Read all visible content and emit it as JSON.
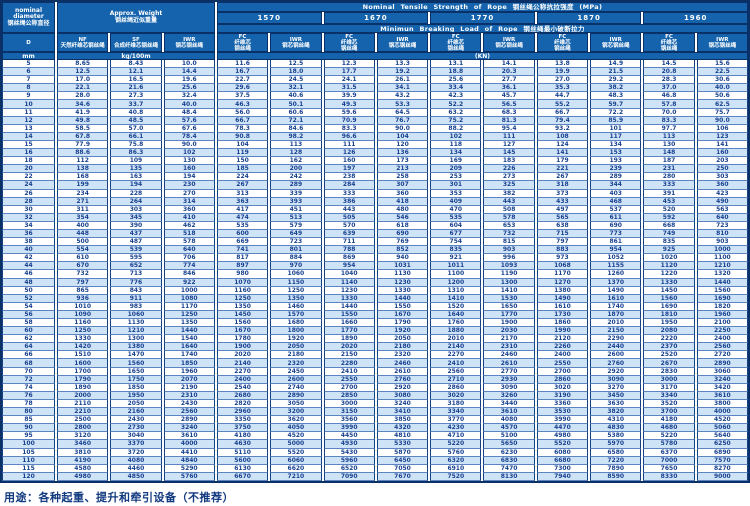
{
  "header": {
    "diameter_en1": "nominal",
    "diameter_en2": "diameter",
    "diameter_zh": "钢丝绳公称直径",
    "weight_en": "Approx. Weight",
    "weight_zh": "钢丝绳近似重量",
    "tensile_title": "Nominal Tensile Strength of Rope 钢丝绳公称抗拉强度 (MPa)",
    "breaking_title": "Minimun Breaking Load of Rope 钢丝绳最小破断拉力",
    "strengths": [
      "1570",
      "1670",
      "1770",
      "1870",
      "1960"
    ],
    "d_label": "D",
    "nf_en": "NF",
    "nf_zh": "天然纤维芯钢丝绳",
    "sf_en": "SF",
    "sf_zh": "合成纤维芯钢丝绳",
    "iwr_en": "IWR",
    "iwr_zh": "钢芯钢丝绳",
    "fc_en": "FC",
    "fc_zh1": "纤维芯",
    "fc_zh2": "钢丝绳",
    "unit_mm": "mm",
    "unit_kg": "kg/100m",
    "unit_kn": "(KN)"
  },
  "rows": [
    [
      "5",
      "8.65",
      "8.43",
      "10.0",
      "11.6",
      "12.5",
      "12.3",
      "13.3",
      "13.1",
      "14.1",
      "13.8",
      "14.9",
      "14.5",
      "15.6"
    ],
    [
      "6",
      "12.5",
      "12.1",
      "14.4",
      "16.7",
      "18.0",
      "17.7",
      "19.2",
      "18.8",
      "20.3",
      "19.9",
      "21.5",
      "20.8",
      "22.5"
    ],
    [
      "7",
      "17.0",
      "16.5",
      "19.6",
      "22.7",
      "24.5",
      "24.1",
      "26.1",
      "25.6",
      "27.7",
      "27.0",
      "29.2",
      "28.3",
      "30.6"
    ],
    [
      "8",
      "22.1",
      "21.6",
      "25.6",
      "29.6",
      "32.1",
      "31.5",
      "34.1",
      "33.4",
      "36.1",
      "35.3",
      "38.2",
      "37.0",
      "40.0"
    ],
    [
      "9",
      "28.0",
      "27.3",
      "32.4",
      "37.5",
      "40.6",
      "39.9",
      "43.2",
      "42.3",
      "45.7",
      "44.7",
      "48.3",
      "46.8",
      "50.6"
    ],
    [
      "10",
      "34.6",
      "33.7",
      "40.0",
      "46.3",
      "50.1",
      "49.3",
      "53.3",
      "52.2",
      "56.5",
      "55.2",
      "59.7",
      "57.8",
      "62.5"
    ],
    [
      "11",
      "41.9",
      "40.8",
      "48.4",
      "56.0",
      "60.6",
      "59.6",
      "64.5",
      "63.2",
      "68.3",
      "66.7",
      "72.2",
      "70.0",
      "75.7"
    ],
    [
      "12",
      "49.8",
      "48.5",
      "57.6",
      "66.7",
      "72.1",
      "70.9",
      "76.7",
      "75.2",
      "81.3",
      "79.4",
      "85.9",
      "83.3",
      "90.0"
    ],
    [
      "13",
      "58.5",
      "57.0",
      "67.6",
      "78.3",
      "84.6",
      "83.3",
      "90.0",
      "88.2",
      "95.4",
      "93.2",
      "101",
      "97.7",
      "106"
    ],
    [
      "14",
      "67.8",
      "66.1",
      "78.4",
      "90.8",
      "98.2",
      "96.6",
      "104",
      "102",
      "111",
      "108",
      "117",
      "113",
      "123"
    ],
    [
      "15",
      "77.9",
      "75.8",
      "90.0",
      "104",
      "113",
      "111",
      "120",
      "118",
      "127",
      "124",
      "134",
      "130",
      "141"
    ],
    [
      "16",
      "88.6",
      "86.3",
      "102",
      "119",
      "128",
      "126",
      "136",
      "134",
      "145",
      "141",
      "153",
      "148",
      "160"
    ],
    [
      "18",
      "112",
      "109",
      "130",
      "150",
      "162",
      "160",
      "173",
      "169",
      "183",
      "179",
      "193",
      "187",
      "203"
    ],
    [
      "20",
      "138",
      "135",
      "160",
      "185",
      "200",
      "197",
      "213",
      "209",
      "226",
      "221",
      "239",
      "231",
      "250"
    ],
    [
      "22",
      "168",
      "163",
      "194",
      "224",
      "242",
      "238",
      "258",
      "253",
      "273",
      "267",
      "289",
      "280",
      "303"
    ],
    [
      "24",
      "199",
      "194",
      "230",
      "267",
      "289",
      "284",
      "307",
      "301",
      "325",
      "318",
      "344",
      "333",
      "360"
    ],
    [
      "26",
      "234",
      "228",
      "270",
      "313",
      "339",
      "333",
      "360",
      "353",
      "382",
      "373",
      "403",
      "391",
      "423"
    ],
    [
      "28",
      "271",
      "264",
      "314",
      "363",
      "393",
      "386",
      "418",
      "409",
      "443",
      "433",
      "468",
      "453",
      "490"
    ],
    [
      "30",
      "311",
      "303",
      "360",
      "417",
      "451",
      "443",
      "480",
      "470",
      "508",
      "497",
      "537",
      "520",
      "563"
    ],
    [
      "32",
      "354",
      "345",
      "410",
      "474",
      "513",
      "505",
      "546",
      "535",
      "578",
      "565",
      "611",
      "592",
      "640"
    ],
    [
      "34",
      "400",
      "390",
      "462",
      "535",
      "579",
      "570",
      "618",
      "604",
      "653",
      "638",
      "690",
      "668",
      "723"
    ],
    [
      "36",
      "448",
      "437",
      "518",
      "600",
      "649",
      "639",
      "690",
      "677",
      "732",
      "715",
      "773",
      "749",
      "810"
    ],
    [
      "38",
      "500",
      "487",
      "578",
      "669",
      "723",
      "711",
      "769",
      "754",
      "815",
      "797",
      "861",
      "835",
      "903"
    ],
    [
      "40",
      "554",
      "539",
      "640",
      "741",
      "801",
      "788",
      "852",
      "835",
      "903",
      "883",
      "954",
      "925",
      "1000"
    ],
    [
      "42",
      "610",
      "595",
      "706",
      "817",
      "884",
      "869",
      "940",
      "921",
      "996",
      "973",
      "1052",
      "1020",
      "1100"
    ],
    [
      "44",
      "670",
      "652",
      "774",
      "897",
      "970",
      "954",
      "1031",
      "1011",
      "1093",
      "1068",
      "1155",
      "1120",
      "1210"
    ],
    [
      "46",
      "732",
      "713",
      "846",
      "980",
      "1060",
      "1040",
      "1130",
      "1100",
      "1190",
      "1170",
      "1260",
      "1220",
      "1320"
    ],
    [
      "48",
      "797",
      "776",
      "922",
      "1070",
      "1150",
      "1140",
      "1230",
      "1200",
      "1300",
      "1270",
      "1370",
      "1330",
      "1440"
    ],
    [
      "50",
      "865",
      "843",
      "1000",
      "1160",
      "1250",
      "1230",
      "1330",
      "1310",
      "1410",
      "1380",
      "1490",
      "1450",
      "1560"
    ],
    [
      "52",
      "936",
      "911",
      "1080",
      "1250",
      "1350",
      "1330",
      "1440",
      "1410",
      "1530",
      "1490",
      "1610",
      "1560",
      "1690"
    ],
    [
      "54",
      "1010",
      "983",
      "1170",
      "1350",
      "1460",
      "1440",
      "1550",
      "1520",
      "1650",
      "1610",
      "1740",
      "1690",
      "1820"
    ],
    [
      "56",
      "1090",
      "1060",
      "1250",
      "1450",
      "1570",
      "1550",
      "1670",
      "1640",
      "1770",
      "1730",
      "1870",
      "1810",
      "1960"
    ],
    [
      "58",
      "1160",
      "1130",
      "1350",
      "1560",
      "1680",
      "1660",
      "1790",
      "1760",
      "1900",
      "1860",
      "2010",
      "1950",
      "2100"
    ],
    [
      "60",
      "1250",
      "1210",
      "1440",
      "1670",
      "1800",
      "1770",
      "1920",
      "1880",
      "2030",
      "1990",
      "2150",
      "2080",
      "2250"
    ],
    [
      "62",
      "1330",
      "1300",
      "1540",
      "1780",
      "1920",
      "1890",
      "2050",
      "2010",
      "2170",
      "2120",
      "2290",
      "2220",
      "2400"
    ],
    [
      "64",
      "1420",
      "1380",
      "1640",
      "1900",
      "2050",
      "2020",
      "2180",
      "2140",
      "2310",
      "2260",
      "2440",
      "2370",
      "2560"
    ],
    [
      "66",
      "1510",
      "1470",
      "1740",
      "2020",
      "2180",
      "2150",
      "2320",
      "2270",
      "2460",
      "2400",
      "2600",
      "2520",
      "2720"
    ],
    [
      "68",
      "1600",
      "1560",
      "1850",
      "2140",
      "2320",
      "2280",
      "2460",
      "2410",
      "2610",
      "2550",
      "2760",
      "2670",
      "2890"
    ],
    [
      "70",
      "1700",
      "1650",
      "1960",
      "2270",
      "2450",
      "2410",
      "2610",
      "2560",
      "2770",
      "2700",
      "2920",
      "2830",
      "3060"
    ],
    [
      "72",
      "1790",
      "1750",
      "2070",
      "2400",
      "2600",
      "2550",
      "2760",
      "2710",
      "2930",
      "2860",
      "3090",
      "3000",
      "3240"
    ],
    [
      "74",
      "1890",
      "1850",
      "2190",
      "2540",
      "2740",
      "2700",
      "2920",
      "2860",
      "3090",
      "3020",
      "3270",
      "3170",
      "3420"
    ],
    [
      "76",
      "2000",
      "1950",
      "2310",
      "2680",
      "2890",
      "2850",
      "3080",
      "3020",
      "3260",
      "3190",
      "3450",
      "3340",
      "3610"
    ],
    [
      "78",
      "2110",
      "2050",
      "2430",
      "2820",
      "3050",
      "3000",
      "3240",
      "3180",
      "3440",
      "3360",
      "3630",
      "3520",
      "3800"
    ],
    [
      "80",
      "2210",
      "2160",
      "2560",
      "2960",
      "3200",
      "3150",
      "3410",
      "3340",
      "3610",
      "3530",
      "3820",
      "3700",
      "4000"
    ],
    [
      "85",
      "2500",
      "2430",
      "2890",
      "3350",
      "3620",
      "3560",
      "3850",
      "3770",
      "4080",
      "3990",
      "4310",
      "4180",
      "4520"
    ],
    [
      "90",
      "2800",
      "2730",
      "3240",
      "3750",
      "4050",
      "3990",
      "4320",
      "4230",
      "4570",
      "4470",
      "4830",
      "4680",
      "5060"
    ],
    [
      "95",
      "3120",
      "3040",
      "3610",
      "4180",
      "4520",
      "4450",
      "4810",
      "4710",
      "5100",
      "4980",
      "5380",
      "5220",
      "5640"
    ],
    [
      "100",
      "3460",
      "3370",
      "4000",
      "4630",
      "5000",
      "4930",
      "5330",
      "5220",
      "5650",
      "5520",
      "5970",
      "5780",
      "6250"
    ],
    [
      "105",
      "3810",
      "3720",
      "4410",
      "5110",
      "5520",
      "5430",
      "5870",
      "5760",
      "6230",
      "6080",
      "6580",
      "6370",
      "6890"
    ],
    [
      "110",
      "4190",
      "4080",
      "4840",
      "5600",
      "6060",
      "5960",
      "6450",
      "6320",
      "6830",
      "6680",
      "7220",
      "7000",
      "7570"
    ],
    [
      "115",
      "4580",
      "4460",
      "5290",
      "6130",
      "6620",
      "6520",
      "7050",
      "6910",
      "7470",
      "7300",
      "7890",
      "7650",
      "8270"
    ],
    [
      "120",
      "4980",
      "4850",
      "5760",
      "6670",
      "7210",
      "7090",
      "7670",
      "7520",
      "8130",
      "7940",
      "8590",
      "8330",
      "9000"
    ]
  ],
  "footer": "用途：各种起重、提升和牵引设备（不推荐）",
  "colors": {
    "header_bg": "#1563ac",
    "header_text": "#ffffff",
    "border": "#0a3068",
    "data_text": "#17418f",
    "stripe": "#cfe3f7"
  }
}
